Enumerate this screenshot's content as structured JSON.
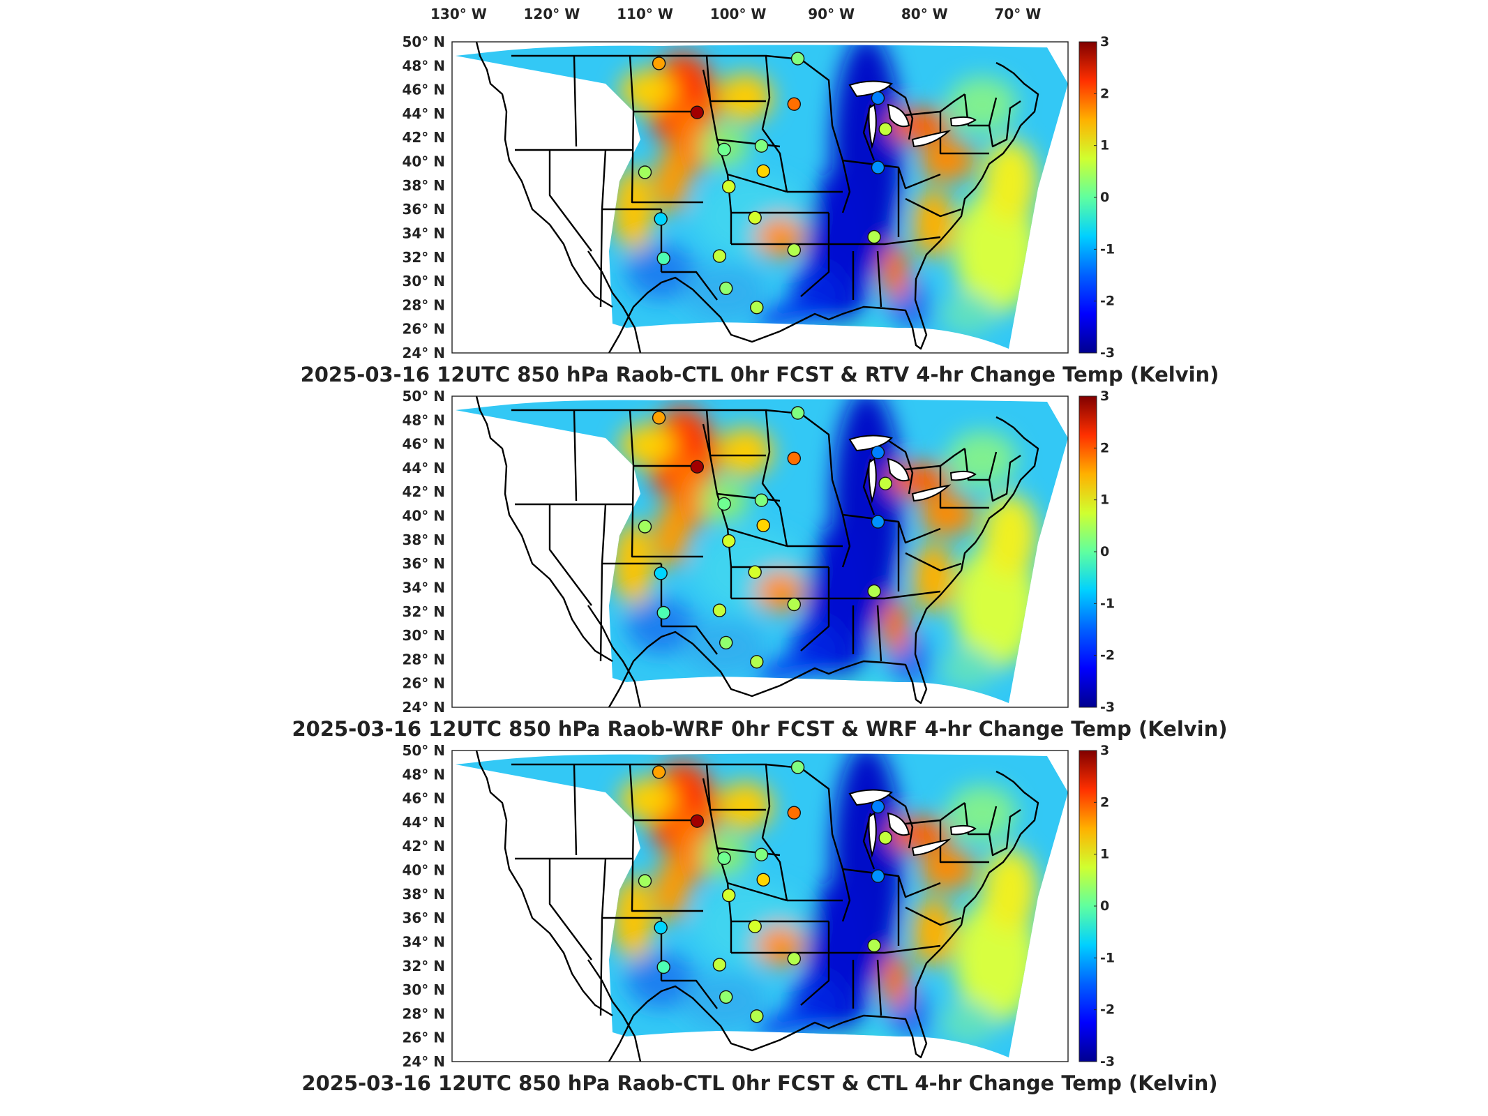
{
  "lon_labels": [
    "130",
    "120",
    "110",
    "100",
    "90",
    "80",
    "70"
  ],
  "lon_unit": "W",
  "lat_labels": [
    "50",
    "48",
    "46",
    "44",
    "42",
    "40",
    "38",
    "36",
    "34",
    "32",
    "30",
    "28",
    "26",
    "24"
  ],
  "lat_unit": "N",
  "degree_symbol": "°",
  "colorbar": {
    "range": [
      -3,
      3
    ],
    "tick_labels": [
      "3",
      "2",
      "1",
      "0",
      "-1",
      "-2",
      "-3"
    ],
    "colormap": "jet",
    "stops": [
      "#00008f",
      "#0000ff",
      "#0080ff",
      "#00ffff",
      "#80ff80",
      "#ffff00",
      "#ff8000",
      "#ff0000",
      "#800000"
    ]
  },
  "panels": [
    {
      "title": "2025-03-16 12UTC 850 hPa Raob-CTL 0hr FCST & RTV 4-hr Change Temp (Kelvin)"
    },
    {
      "title": "2025-03-16 12UTC 850 hPa Raob-WRF 0hr FCST & WRF 4-hr Change Temp (Kelvin)"
    },
    {
      "title": "2025-03-16 12UTC 850 hPa Raob-CTL 0hr FCST & CTL 4-hr Change Temp (Kelvin)"
    }
  ],
  "chart_data": {
    "type": "heatmap",
    "units": "Kelvin",
    "color_range": [
      -3,
      3
    ],
    "lon_range_W": [
      130,
      64
    ],
    "lat_range_N": [
      24,
      50
    ],
    "raob_sites": [
      {
        "lon": -108.5,
        "lat": 48.2,
        "value": 1.3
      },
      {
        "lon": -104.4,
        "lat": 44.1,
        "value": 2.8
      },
      {
        "lon": -93.6,
        "lat": 48.6,
        "value": 0.0
      },
      {
        "lon": -94.0,
        "lat": 44.8,
        "value": 1.6
      },
      {
        "lon": -85.0,
        "lat": 45.3,
        "value": -1.5
      },
      {
        "lon": -84.2,
        "lat": 42.7,
        "value": 0.4
      },
      {
        "lon": -110.0,
        "lat": 39.1,
        "value": 0.2
      },
      {
        "lon": -101.5,
        "lat": 41.0,
        "value": -0.1
      },
      {
        "lon": -97.5,
        "lat": 41.3,
        "value": 0.0
      },
      {
        "lon": -101.0,
        "lat": 37.9,
        "value": 0.5
      },
      {
        "lon": -97.3,
        "lat": 39.2,
        "value": 1.0
      },
      {
        "lon": -85.0,
        "lat": 39.5,
        "value": -1.4
      },
      {
        "lon": -108.3,
        "lat": 35.2,
        "value": -1.0
      },
      {
        "lon": -98.2,
        "lat": 35.3,
        "value": 0.5
      },
      {
        "lon": -102.0,
        "lat": 32.1,
        "value": 0.4
      },
      {
        "lon": -108.0,
        "lat": 31.9,
        "value": -0.3
      },
      {
        "lon": -94.0,
        "lat": 32.6,
        "value": 0.3
      },
      {
        "lon": -85.4,
        "lat": 33.7,
        "value": 0.3
      },
      {
        "lon": -101.3,
        "lat": 29.4,
        "value": 0.1
      },
      {
        "lon": -98.0,
        "lat": 27.8,
        "value": 0.3
      }
    ]
  }
}
